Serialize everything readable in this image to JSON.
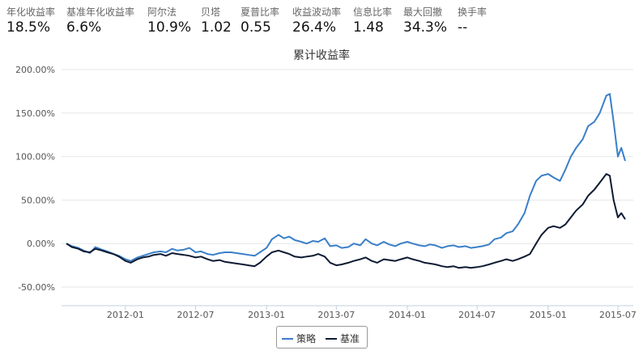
{
  "stats": [
    {
      "label": "年化收益率",
      "value": "18.5%"
    },
    {
      "label": "基准年化收益率",
      "value": "6.6%"
    },
    {
      "label": "阿尔法",
      "value": "10.9%"
    },
    {
      "label": "贝塔",
      "value": "1.02"
    },
    {
      "label": "夏普比率",
      "value": "0.55"
    },
    {
      "label": "收益波动率",
      "value": "26.4%"
    },
    {
      "label": "信息比率",
      "value": "1.48"
    },
    {
      "label": "最大回撤",
      "value": "34.3%"
    },
    {
      "label": "换手率",
      "value": "--"
    }
  ],
  "chart_data": {
    "type": "line",
    "title": "累计收益率",
    "xlabel": "",
    "ylabel": "",
    "ylim": [
      -50,
      200
    ],
    "yticks": [
      200,
      150,
      100,
      50,
      0,
      -50
    ],
    "ytick_labels": [
      "200.00%",
      "150.00%",
      "100.00%",
      "50.00%",
      "0.00%",
      "-50.00%"
    ],
    "xlim": [
      "2011-08-01",
      "2015-07-20"
    ],
    "xticks": [
      "2012-01",
      "2012-07",
      "2013-01",
      "2013-07",
      "2014-01",
      "2014-07",
      "2015-01",
      "2015-07"
    ],
    "grid": "horizontal",
    "legend_position": "bottom",
    "series": [
      {
        "name": "策略",
        "color": "#3a7fc8",
        "x": [
          "2011-08-01",
          "2011-08-15",
          "2011-09-01",
          "2011-09-15",
          "2011-10-01",
          "2011-10-15",
          "2011-11-01",
          "2011-11-15",
          "2011-12-01",
          "2011-12-15",
          "2012-01-01",
          "2012-01-15",
          "2012-02-01",
          "2012-02-15",
          "2012-03-01",
          "2012-03-15",
          "2012-04-01",
          "2012-04-15",
          "2012-05-01",
          "2012-05-15",
          "2012-06-01",
          "2012-06-15",
          "2012-07-01",
          "2012-07-15",
          "2012-08-01",
          "2012-08-15",
          "2012-09-01",
          "2012-09-15",
          "2012-10-01",
          "2012-10-15",
          "2012-11-01",
          "2012-11-15",
          "2012-12-01",
          "2012-12-15",
          "2013-01-01",
          "2013-01-15",
          "2013-02-01",
          "2013-02-15",
          "2013-03-01",
          "2013-03-15",
          "2013-04-01",
          "2013-04-15",
          "2013-05-01",
          "2013-05-15",
          "2013-06-01",
          "2013-06-15",
          "2013-07-01",
          "2013-07-15",
          "2013-08-01",
          "2013-08-15",
          "2013-09-01",
          "2013-09-15",
          "2013-10-01",
          "2013-10-15",
          "2013-11-01",
          "2013-11-15",
          "2013-12-01",
          "2013-12-15",
          "2014-01-01",
          "2014-01-15",
          "2014-02-01",
          "2014-02-15",
          "2014-03-01",
          "2014-03-15",
          "2014-04-01",
          "2014-04-15",
          "2014-05-01",
          "2014-05-15",
          "2014-06-01",
          "2014-06-15",
          "2014-07-01",
          "2014-07-15",
          "2014-08-01",
          "2014-08-15",
          "2014-09-01",
          "2014-09-15",
          "2014-10-01",
          "2014-10-15",
          "2014-11-01",
          "2014-11-15",
          "2014-12-01",
          "2014-12-15",
          "2015-01-01",
          "2015-01-15",
          "2015-02-01",
          "2015-02-15",
          "2015-03-01",
          "2015-03-15",
          "2015-04-01",
          "2015-04-15",
          "2015-05-01",
          "2015-05-15",
          "2015-06-01",
          "2015-06-10",
          "2015-06-20",
          "2015-07-01",
          "2015-07-10",
          "2015-07-20"
        ],
        "values": [
          0,
          -3,
          -5,
          -8,
          -11,
          -4,
          -7,
          -9,
          -12,
          -14,
          -18,
          -20,
          -16,
          -14,
          -12,
          -10,
          -9,
          -10,
          -6,
          -8,
          -7,
          -5,
          -10,
          -9,
          -12,
          -13,
          -11,
          -10,
          -10,
          -11,
          -12,
          -13,
          -14,
          -10,
          -5,
          5,
          10,
          6,
          8,
          4,
          2,
          0,
          3,
          2,
          6,
          -3,
          -2,
          -5,
          -4,
          0,
          -2,
          5,
          0,
          -2,
          2,
          -1,
          -3,
          0,
          2,
          0,
          -2,
          -3,
          -1,
          -2,
          -5,
          -3,
          -2,
          -4,
          -3,
          -5,
          -4,
          -3,
          -1,
          5,
          7,
          12,
          14,
          22,
          35,
          55,
          72,
          78,
          80,
          76,
          72,
          85,
          100,
          110,
          120,
          135,
          140,
          150,
          170,
          172,
          140,
          100,
          110,
          95
        ]
      },
      {
        "name": "基准",
        "color": "#0d1b33",
        "x": [
          "2011-08-01",
          "2011-08-15",
          "2011-09-01",
          "2011-09-15",
          "2011-10-01",
          "2011-10-15",
          "2011-11-01",
          "2011-11-15",
          "2011-12-01",
          "2011-12-15",
          "2012-01-01",
          "2012-01-15",
          "2012-02-01",
          "2012-02-15",
          "2012-03-01",
          "2012-03-15",
          "2012-04-01",
          "2012-04-15",
          "2012-05-01",
          "2012-05-15",
          "2012-06-01",
          "2012-06-15",
          "2012-07-01",
          "2012-07-15",
          "2012-08-01",
          "2012-08-15",
          "2012-09-01",
          "2012-09-15",
          "2012-10-01",
          "2012-10-15",
          "2012-11-01",
          "2012-11-15",
          "2012-12-01",
          "2012-12-15",
          "2013-01-01",
          "2013-01-15",
          "2013-02-01",
          "2013-02-15",
          "2013-03-01",
          "2013-03-15",
          "2013-04-01",
          "2013-04-15",
          "2013-05-01",
          "2013-05-15",
          "2013-06-01",
          "2013-06-15",
          "2013-07-01",
          "2013-07-15",
          "2013-08-01",
          "2013-08-15",
          "2013-09-01",
          "2013-09-15",
          "2013-10-01",
          "2013-10-15",
          "2013-11-01",
          "2013-11-15",
          "2013-12-01",
          "2013-12-15",
          "2014-01-01",
          "2014-01-15",
          "2014-02-01",
          "2014-02-15",
          "2014-03-01",
          "2014-03-15",
          "2014-04-01",
          "2014-04-15",
          "2014-05-01",
          "2014-05-15",
          "2014-06-01",
          "2014-06-15",
          "2014-07-01",
          "2014-07-15",
          "2014-08-01",
          "2014-08-15",
          "2014-09-01",
          "2014-09-15",
          "2014-10-01",
          "2014-10-15",
          "2014-11-01",
          "2014-11-15",
          "2014-12-01",
          "2014-12-15",
          "2015-01-01",
          "2015-01-15",
          "2015-02-01",
          "2015-02-15",
          "2015-03-01",
          "2015-03-15",
          "2015-04-01",
          "2015-04-15",
          "2015-05-01",
          "2015-05-15",
          "2015-06-01",
          "2015-06-10",
          "2015-06-20",
          "2015-07-01",
          "2015-07-10",
          "2015-07-20"
        ],
        "values": [
          0,
          -4,
          -6,
          -9,
          -10,
          -6,
          -8,
          -10,
          -12,
          -15,
          -20,
          -22,
          -18,
          -16,
          -15,
          -13,
          -12,
          -14,
          -11,
          -12,
          -13,
          -14,
          -16,
          -15,
          -18,
          -20,
          -19,
          -21,
          -22,
          -23,
          -24,
          -25,
          -26,
          -22,
          -15,
          -10,
          -8,
          -10,
          -12,
          -15,
          -16,
          -15,
          -14,
          -12,
          -15,
          -22,
          -25,
          -24,
          -22,
          -20,
          -18,
          -16,
          -20,
          -22,
          -18,
          -19,
          -20,
          -18,
          -16,
          -18,
          -20,
          -22,
          -23,
          -24,
          -26,
          -27,
          -26,
          -28,
          -27,
          -28,
          -27,
          -26,
          -24,
          -22,
          -20,
          -18,
          -20,
          -18,
          -15,
          -12,
          0,
          10,
          18,
          20,
          18,
          22,
          30,
          38,
          45,
          55,
          62,
          70,
          80,
          78,
          50,
          30,
          35,
          28
        ]
      }
    ]
  }
}
